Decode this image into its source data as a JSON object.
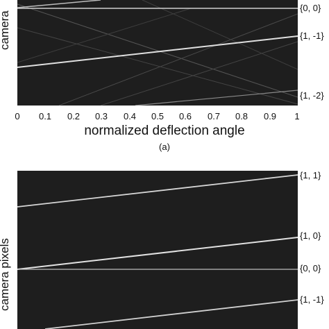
{
  "figure": {
    "panel_a": {
      "ylabel": "camera",
      "xlabel": "normalized deflection angle",
      "sublabel": "(a)",
      "xticks": [
        "0",
        "0.1",
        "0.2",
        "0.3",
        "0.4",
        "0.5",
        "0.6",
        "0.7",
        "0.8",
        "0.9",
        "1"
      ],
      "order_labels": [
        "{0, 0}",
        "{1, -1}",
        "{1, -2}"
      ]
    },
    "panel_b": {
      "ylabel": "camera pixels",
      "order_labels": [
        "{1, 1}",
        "{1, 0}",
        "{0, 0}",
        "{1, -1}"
      ]
    }
  }
}
